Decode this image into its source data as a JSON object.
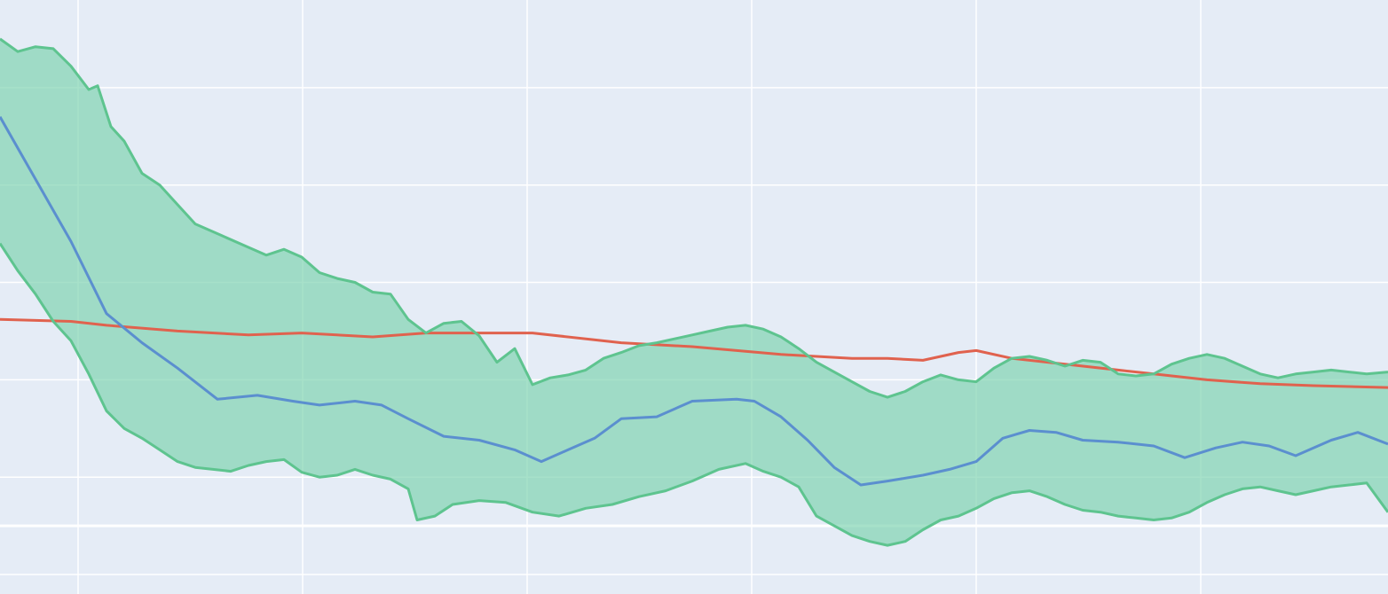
{
  "chart_data": {
    "type": "line",
    "title": "",
    "xlabel": "",
    "ylabel": "",
    "xlim": [
      0,
      1564
    ],
    "ylim": [
      -0.7,
      5.4
    ],
    "grid": true,
    "zero_line": true,
    "x_gridlines": [
      88,
      341,
      594,
      847,
      1100,
      1353
    ],
    "y_gridlines": [
      -0.5,
      0.5,
      1.5,
      2.5,
      3.5,
      4.5
    ],
    "colors": {
      "background": "#e5ecf6",
      "grid": "#ffffff",
      "band_fill": "#7dd3b0",
      "band_line": "#5ec48f",
      "mean_line": "#5b8fcf",
      "reference_line": "#e0624e"
    },
    "series": [
      {
        "role": "band_upper",
        "x": [
          0,
          20,
          40,
          60,
          80,
          100,
          110,
          125,
          140,
          160,
          180,
          200,
          220,
          250,
          280,
          300,
          320,
          340,
          360,
          380,
          400,
          420,
          440,
          460,
          480,
          500,
          520,
          540,
          560,
          580,
          600,
          620,
          640,
          660,
          680,
          700,
          720,
          740,
          760,
          780,
          800,
          820,
          840,
          860,
          880,
          900,
          920,
          940,
          960,
          980,
          1000,
          1020,
          1040,
          1060,
          1080,
          1100,
          1120,
          1140,
          1160,
          1180,
          1200,
          1220,
          1240,
          1260,
          1280,
          1300,
          1320,
          1340,
          1360,
          1380,
          1400,
          1420,
          1440,
          1460,
          1480,
          1500,
          1520,
          1540,
          1564
        ],
        "values": [
          5.0,
          4.87,
          4.92,
          4.9,
          4.72,
          4.48,
          4.52,
          4.1,
          3.95,
          3.62,
          3.5,
          3.3,
          3.1,
          2.98,
          2.86,
          2.78,
          2.84,
          2.76,
          2.6,
          2.54,
          2.5,
          2.4,
          2.38,
          2.12,
          1.98,
          2.08,
          2.1,
          1.95,
          1.68,
          1.82,
          1.45,
          1.52,
          1.55,
          1.6,
          1.72,
          1.78,
          1.85,
          1.88,
          1.92,
          1.96,
          2.0,
          2.04,
          2.06,
          2.02,
          1.94,
          1.82,
          1.68,
          1.58,
          1.48,
          1.38,
          1.32,
          1.38,
          1.48,
          1.55,
          1.5,
          1.48,
          1.62,
          1.72,
          1.74,
          1.7,
          1.64,
          1.7,
          1.68,
          1.56,
          1.54,
          1.56,
          1.66,
          1.72,
          1.76,
          1.72,
          1.64,
          1.56,
          1.52,
          1.56,
          1.58,
          1.6,
          1.58,
          1.56,
          1.58
        ]
      },
      {
        "role": "band_lower",
        "x": [
          0,
          20,
          40,
          60,
          80,
          100,
          120,
          140,
          160,
          180,
          200,
          220,
          240,
          260,
          280,
          300,
          320,
          340,
          360,
          380,
          400,
          420,
          440,
          460,
          470,
          490,
          510,
          540,
          570,
          600,
          630,
          660,
          690,
          720,
          750,
          780,
          810,
          840,
          860,
          880,
          900,
          920,
          940,
          960,
          980,
          1000,
          1020,
          1040,
          1060,
          1080,
          1100,
          1120,
          1140,
          1160,
          1180,
          1200,
          1220,
          1240,
          1260,
          1280,
          1300,
          1320,
          1340,
          1360,
          1380,
          1400,
          1420,
          1440,
          1460,
          1480,
          1500,
          1520,
          1540,
          1564
        ],
        "values": [
          2.9,
          2.62,
          2.38,
          2.1,
          1.9,
          1.56,
          1.18,
          1.0,
          0.9,
          0.78,
          0.66,
          0.6,
          0.58,
          0.56,
          0.62,
          0.66,
          0.68,
          0.55,
          0.5,
          0.52,
          0.58,
          0.52,
          0.48,
          0.38,
          0.06,
          0.1,
          0.22,
          0.26,
          0.24,
          0.14,
          0.1,
          0.18,
          0.22,
          0.3,
          0.36,
          0.46,
          0.58,
          0.64,
          0.56,
          0.5,
          0.4,
          0.1,
          0.0,
          -0.1,
          -0.16,
          -0.2,
          -0.16,
          -0.04,
          0.06,
          0.1,
          0.18,
          0.28,
          0.34,
          0.36,
          0.3,
          0.22,
          0.16,
          0.14,
          0.1,
          0.08,
          0.06,
          0.08,
          0.14,
          0.24,
          0.32,
          0.38,
          0.4,
          0.36,
          0.32,
          0.36,
          0.4,
          0.42,
          0.44,
          0.14
        ]
      },
      {
        "role": "mean",
        "x": [
          0,
          40,
          80,
          120,
          160,
          200,
          245,
          290,
          330,
          360,
          400,
          430,
          460,
          500,
          540,
          580,
          610,
          640,
          670,
          700,
          740,
          780,
          830,
          850,
          880,
          910,
          940,
          970,
          1000,
          1040,
          1070,
          1100,
          1130,
          1160,
          1190,
          1220,
          1260,
          1300,
          1335,
          1370,
          1400,
          1430,
          1460,
          1500,
          1530,
          1564
        ],
        "values": [
          4.2,
          3.56,
          2.92,
          2.18,
          1.88,
          1.62,
          1.3,
          1.34,
          1.28,
          1.24,
          1.28,
          1.24,
          1.1,
          0.92,
          0.88,
          0.78,
          0.66,
          0.78,
          0.9,
          1.1,
          1.12,
          1.28,
          1.3,
          1.28,
          1.12,
          0.88,
          0.6,
          0.42,
          0.46,
          0.52,
          0.58,
          0.66,
          0.9,
          0.98,
          0.96,
          0.88,
          0.86,
          0.82,
          0.7,
          0.8,
          0.86,
          0.82,
          0.72,
          0.88,
          0.96,
          0.84
        ]
      },
      {
        "role": "reference",
        "x": [
          0,
          80,
          120,
          200,
          280,
          340,
          420,
          480,
          520,
          600,
          700,
          780,
          880,
          960,
          1000,
          1040,
          1080,
          1100,
          1140,
          1200,
          1260,
          1300,
          1360,
          1420,
          1480,
          1564
        ],
        "values": [
          2.12,
          2.1,
          2.06,
          2.0,
          1.96,
          1.98,
          1.94,
          1.98,
          1.98,
          1.98,
          1.88,
          1.84,
          1.76,
          1.72,
          1.72,
          1.7,
          1.78,
          1.8,
          1.72,
          1.66,
          1.6,
          1.56,
          1.5,
          1.46,
          1.44,
          1.42
        ]
      }
    ]
  }
}
